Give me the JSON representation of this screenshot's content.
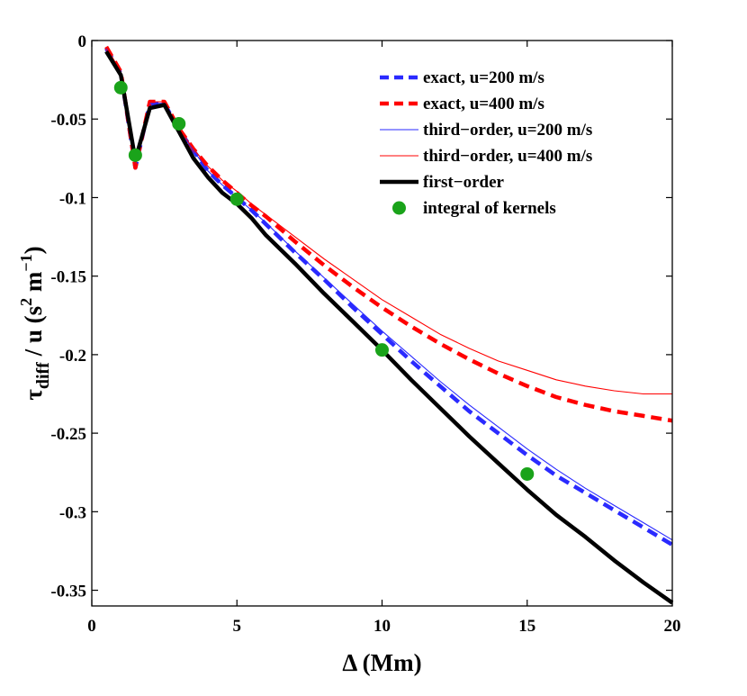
{
  "chart_data": {
    "type": "line",
    "title": "",
    "xlabel": "Δ  (Mm)",
    "ylabel": {
      "main": "τ",
      "sub": "diff",
      "rest": " / u  (s",
      "sup1": "2",
      "mid": " m",
      "sup2": "−1",
      "end": ")"
    },
    "xlim": [
      0,
      20
    ],
    "ylim": [
      -0.36,
      0
    ],
    "xticks": [
      0,
      5,
      10,
      15,
      20
    ],
    "xtick_labels": [
      "0",
      "5",
      "10",
      "15",
      "20"
    ],
    "yticks": [
      0,
      -0.05,
      -0.1,
      -0.15,
      -0.2,
      -0.25,
      -0.3,
      -0.35
    ],
    "ytick_labels": [
      "0",
      "-0.05",
      "-0.1",
      "-0.15",
      "-0.2",
      "-0.25",
      "-0.3",
      "-0.35"
    ],
    "grid": false,
    "legend_position": "top-right",
    "series": [
      {
        "name": "exact, u=200 m/s",
        "color": "#2a2aff",
        "style": "dashed",
        "weight": "thick",
        "x": [
          0.5,
          1.0,
          1.5,
          2.0,
          2.5,
          3.0,
          3.5,
          4.0,
          4.5,
          5.0,
          5.5,
          6.0,
          7.0,
          8.0,
          9.0,
          10.0,
          11.0,
          12.0,
          13.0,
          14.0,
          15.0,
          16.0,
          17.0,
          18.0,
          19.0,
          20.0
        ],
        "y": [
          -0.005,
          -0.021,
          -0.081,
          -0.04,
          -0.04,
          -0.057,
          -0.07,
          -0.083,
          -0.092,
          -0.1,
          -0.108,
          -0.117,
          -0.135,
          -0.152,
          -0.17,
          -0.187,
          -0.204,
          -0.22,
          -0.236,
          -0.25,
          -0.264,
          -0.277,
          -0.288,
          -0.299,
          -0.31,
          -0.321
        ]
      },
      {
        "name": "exact, u=400 m/s",
        "color": "#ff0000",
        "style": "dashed",
        "weight": "thick",
        "x": [
          0.5,
          1.0,
          1.5,
          2.0,
          2.5,
          3.0,
          3.5,
          4.0,
          4.5,
          5.0,
          5.5,
          6.0,
          7.0,
          8.0,
          9.0,
          10.0,
          11.0,
          12.0,
          13.0,
          14.0,
          15.0,
          16.0,
          17.0,
          18.0,
          19.0,
          20.0
        ],
        "y": [
          -0.004,
          -0.02,
          -0.081,
          -0.039,
          -0.039,
          -0.056,
          -0.069,
          -0.08,
          -0.089,
          -0.097,
          -0.105,
          -0.112,
          -0.128,
          -0.143,
          -0.157,
          -0.17,
          -0.182,
          -0.193,
          -0.203,
          -0.212,
          -0.22,
          -0.227,
          -0.232,
          -0.236,
          -0.239,
          -0.242
        ]
      },
      {
        "name": "third−order, u=200 m/s",
        "color": "#2a2aff",
        "style": "solid",
        "weight": "thin",
        "x": [
          0.5,
          1.0,
          1.5,
          2.0,
          2.5,
          3.0,
          3.5,
          4.0,
          4.5,
          5.0,
          5.5,
          6.0,
          7.0,
          8.0,
          9.0,
          10.0,
          11.0,
          12.0,
          13.0,
          14.0,
          15.0,
          16.0,
          17.0,
          18.0,
          19.0,
          20.0
        ],
        "y": [
          -0.005,
          -0.021,
          -0.08,
          -0.04,
          -0.04,
          -0.057,
          -0.07,
          -0.083,
          -0.092,
          -0.1,
          -0.108,
          -0.116,
          -0.134,
          -0.151,
          -0.168,
          -0.185,
          -0.201,
          -0.217,
          -0.232,
          -0.246,
          -0.26,
          -0.273,
          -0.285,
          -0.296,
          -0.307,
          -0.318
        ]
      },
      {
        "name": "third−order, u=400 m/s",
        "color": "#ff0000",
        "style": "solid",
        "weight": "thin",
        "x": [
          0.5,
          1.0,
          1.5,
          2.0,
          2.5,
          3.0,
          3.5,
          4.0,
          4.5,
          5.0,
          5.5,
          6.0,
          7.0,
          8.0,
          9.0,
          10.0,
          11.0,
          12.0,
          13.0,
          14.0,
          15.0,
          16.0,
          17.0,
          18.0,
          19.0,
          20.0
        ],
        "y": [
          -0.004,
          -0.02,
          -0.08,
          -0.039,
          -0.039,
          -0.056,
          -0.069,
          -0.08,
          -0.089,
          -0.096,
          -0.104,
          -0.111,
          -0.125,
          -0.139,
          -0.152,
          -0.165,
          -0.176,
          -0.187,
          -0.196,
          -0.204,
          -0.21,
          -0.216,
          -0.22,
          -0.223,
          -0.225,
          -0.225
        ]
      },
      {
        "name": "first−order",
        "color": "#000000",
        "style": "solid",
        "weight": "heavy",
        "x": [
          0.5,
          1.0,
          1.5,
          2.0,
          2.5,
          3.0,
          3.5,
          4.0,
          4.5,
          5.0,
          5.5,
          6.0,
          7.0,
          8.0,
          9.0,
          10.0,
          11.0,
          12.0,
          13.0,
          14.0,
          15.0,
          16.0,
          17.0,
          18.0,
          19.0,
          20.0
        ],
        "y": [
          -0.007,
          -0.022,
          -0.076,
          -0.043,
          -0.041,
          -0.058,
          -0.075,
          -0.087,
          -0.097,
          -0.104,
          -0.113,
          -0.124,
          -0.142,
          -0.161,
          -0.179,
          -0.197,
          -0.216,
          -0.234,
          -0.252,
          -0.269,
          -0.286,
          -0.302,
          -0.316,
          -0.331,
          -0.345,
          -0.358
        ]
      },
      {
        "name": "integral of kernels",
        "color": "#1aa31a",
        "style": "markers",
        "weight": "marker",
        "x": [
          1,
          1.5,
          3,
          5,
          10,
          15
        ],
        "y": [
          -0.03,
          -0.073,
          -0.053,
          -0.101,
          -0.197,
          -0.276
        ]
      }
    ]
  }
}
